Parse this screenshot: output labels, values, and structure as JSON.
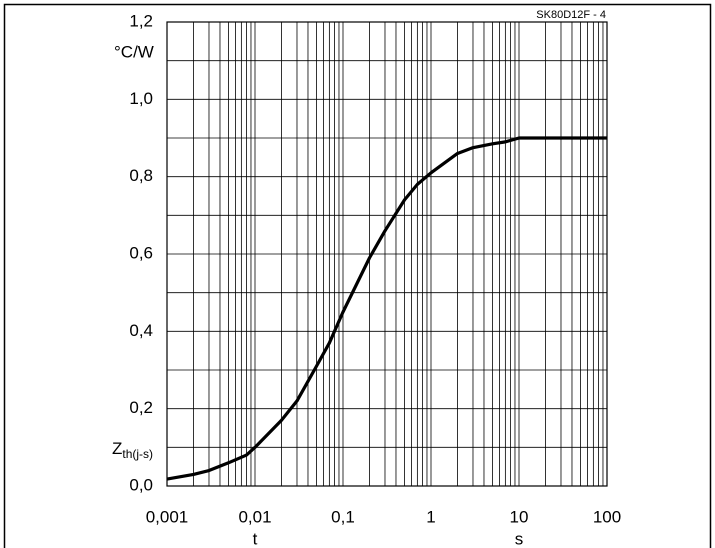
{
  "chart_data": {
    "type": "line",
    "annotation": "SK80D12F  - 4",
    "y_unit": "°C/W",
    "ylabel": "Z",
    "ylabel_sub": "th(j-s)",
    "xlabel": "t",
    "x_unit": "s",
    "xscale": "log",
    "grid": true,
    "xlim": [
      0.001,
      100
    ],
    "ylim": [
      0,
      1.2
    ],
    "xticks": [
      {
        "value": 0.001,
        "label": "0,001"
      },
      {
        "value": 0.01,
        "label": "0,01"
      },
      {
        "value": 0.1,
        "label": "0,1"
      },
      1,
      10,
      100
    ],
    "xminorticks": [
      0.002,
      0.003,
      0.004,
      0.005,
      0.006,
      0.007,
      0.008,
      0.009,
      0.02,
      0.03,
      0.04,
      0.05,
      0.06,
      0.07,
      0.08,
      0.09,
      0.2,
      0.3,
      0.4,
      0.5,
      0.6,
      0.7,
      0.8,
      0.9,
      2,
      3,
      4,
      5,
      6,
      7,
      8,
      9,
      20,
      30,
      40,
      50,
      60,
      70,
      80,
      90
    ],
    "yticks": [
      {
        "value": 0,
        "label": "0,0"
      },
      {
        "value": 0.2,
        "label": "0,2"
      },
      {
        "value": 0.4,
        "label": "0,4"
      },
      {
        "value": 0.6,
        "label": "0,6"
      },
      {
        "value": 0.8,
        "label": "0,8"
      },
      {
        "value": 1.0,
        "label": "1,0"
      },
      {
        "value": 1.2,
        "label": "1,2"
      }
    ],
    "yminorticks": [
      0.1,
      0.3,
      0.5,
      0.7,
      0.9,
      1.1
    ],
    "series": [
      {
        "color": "#000000",
        "x": [
          0.001,
          0.002,
          0.003,
          0.005,
          0.008,
          0.01,
          0.02,
          0.03,
          0.05,
          0.07,
          0.1,
          0.2,
          0.3,
          0.5,
          0.7,
          1,
          2,
          3,
          5,
          7,
          10,
          20,
          100
        ],
        "values": [
          0.018,
          0.03,
          0.04,
          0.06,
          0.08,
          0.1,
          0.17,
          0.22,
          0.31,
          0.37,
          0.45,
          0.59,
          0.66,
          0.74,
          0.78,
          0.81,
          0.86,
          0.875,
          0.885,
          0.89,
          0.9,
          0.9,
          0.9
        ]
      }
    ]
  }
}
